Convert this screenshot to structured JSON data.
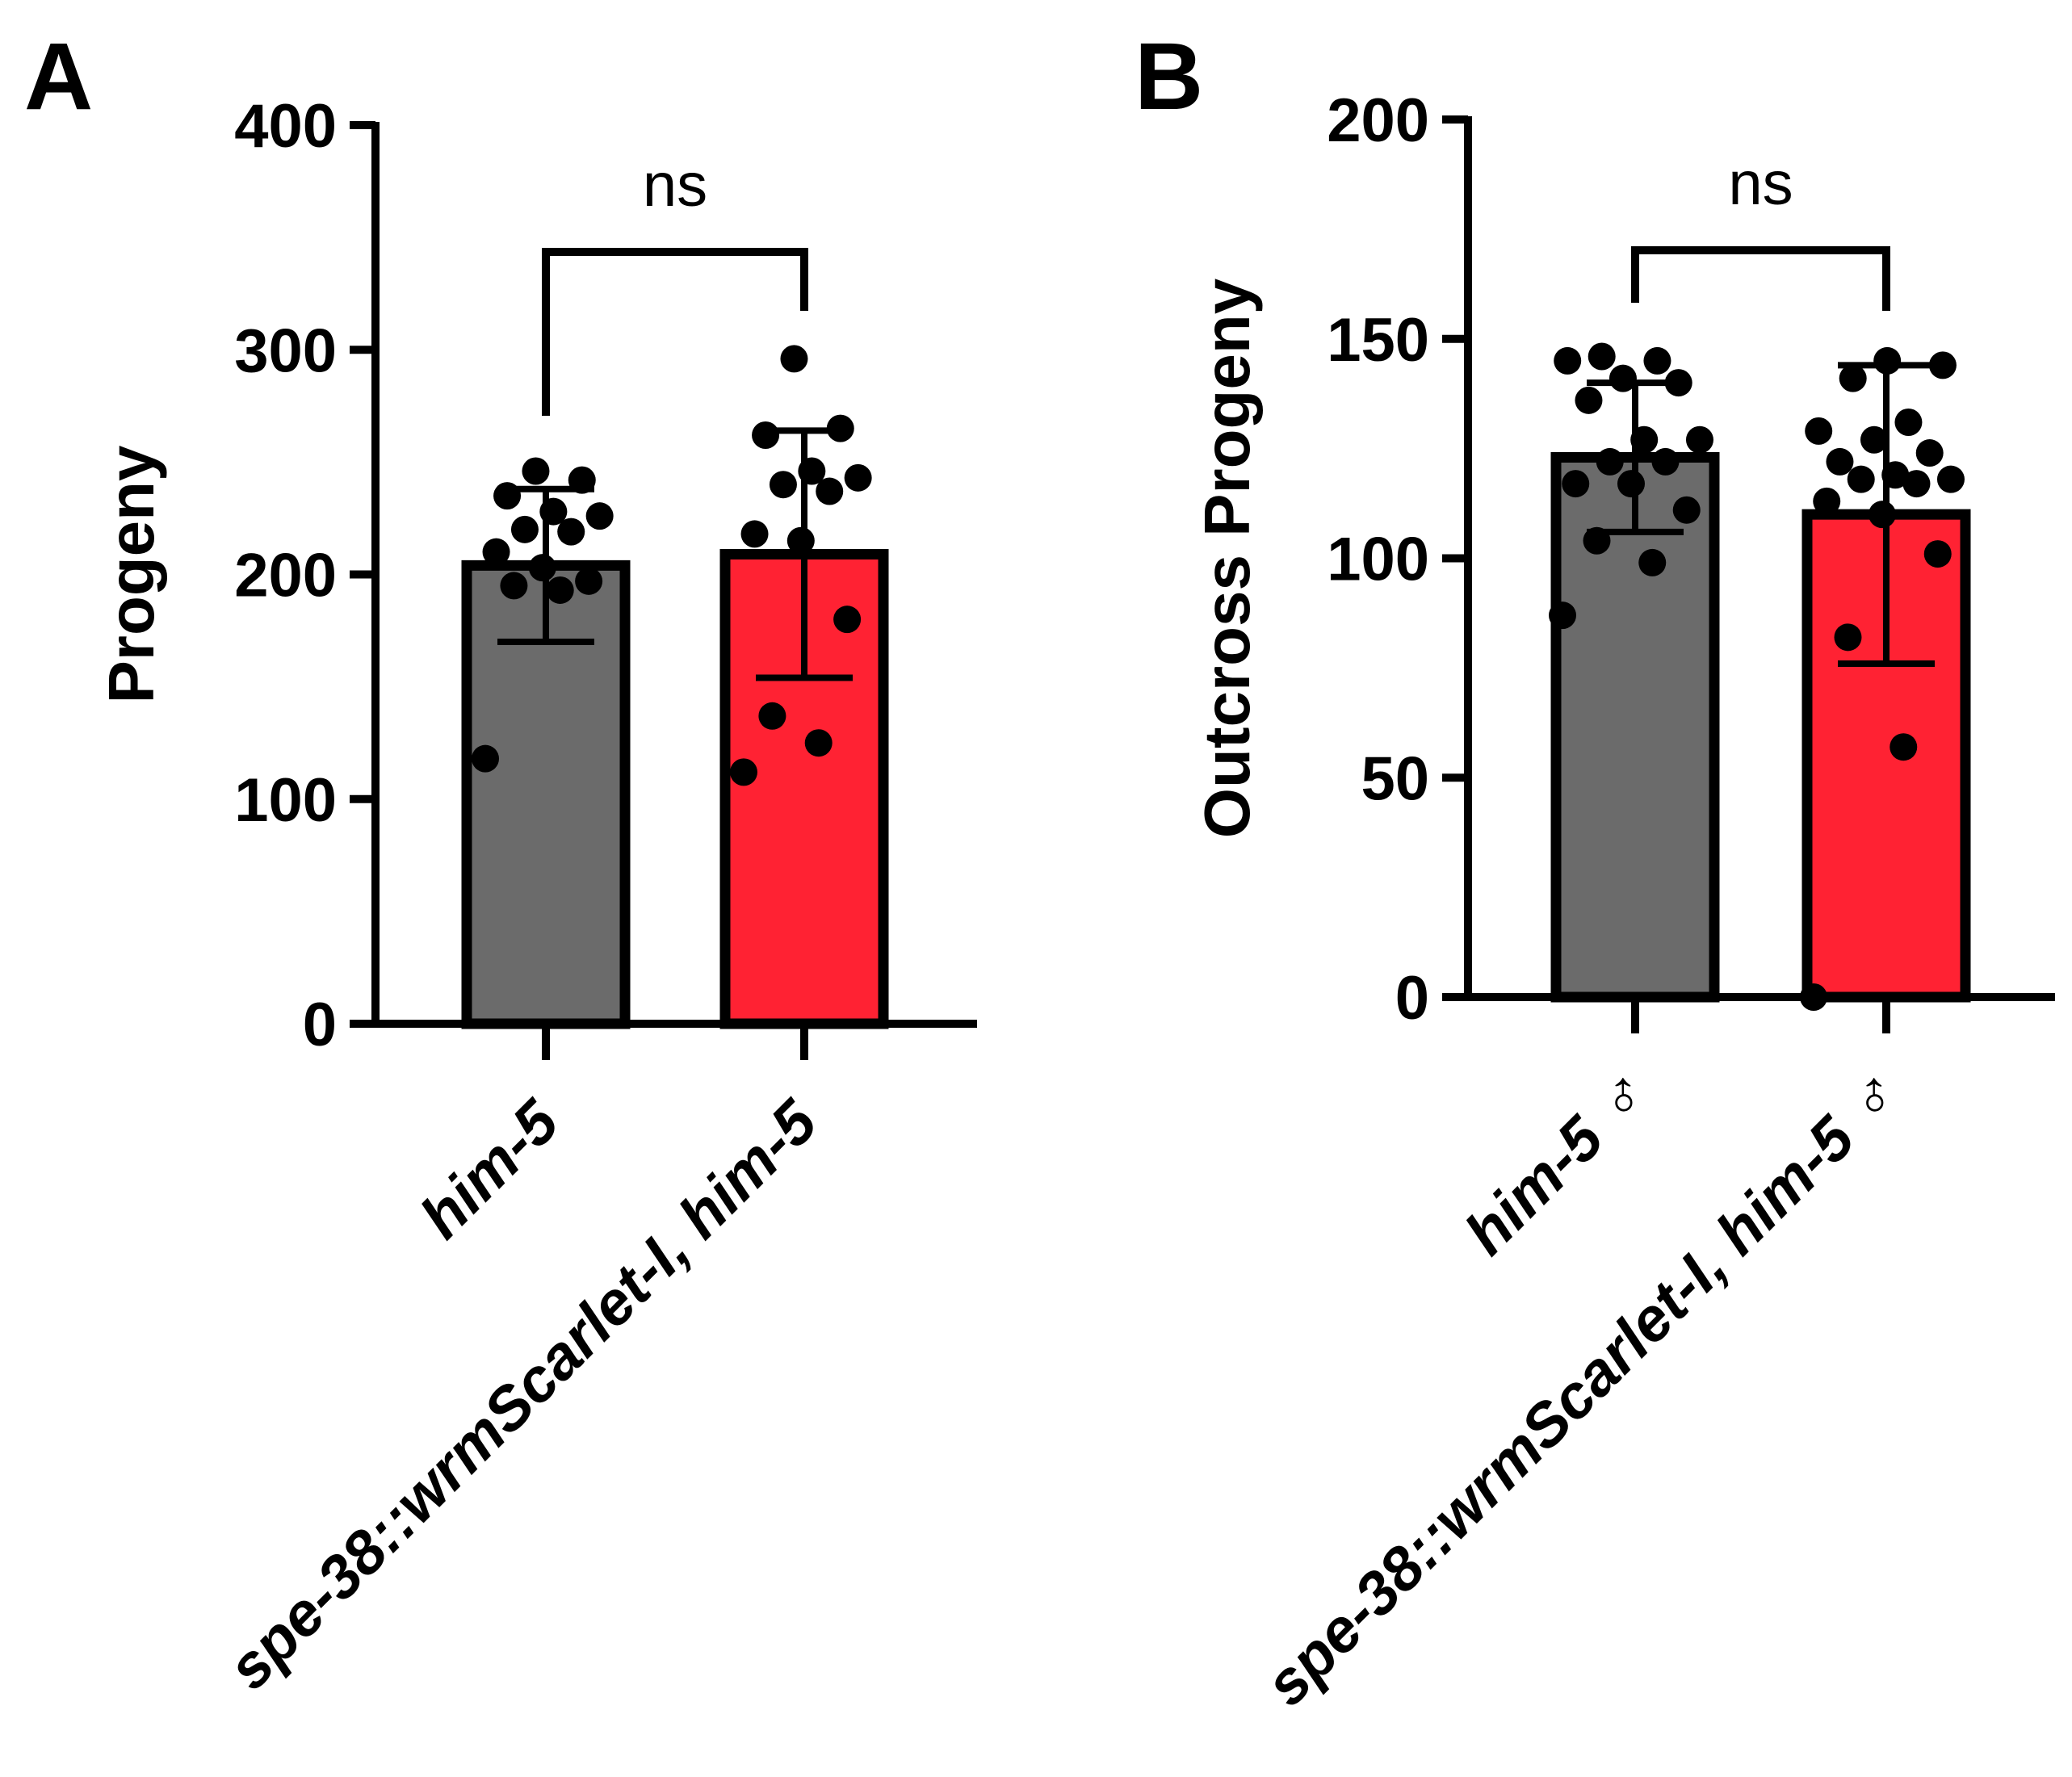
{
  "chart_data": [
    {
      "panel": "A",
      "type": "bar",
      "ylabel": "Progeny",
      "ylim": [
        0,
        400
      ],
      "yticks": [
        0,
        100,
        200,
        300,
        400
      ],
      "categories": [
        "him-5",
        "spe-38::wrmScarlet-I, him-5"
      ],
      "means": [
        204,
        209
      ],
      "sd": [
        34,
        55
      ],
      "colors": [
        "#6b6b6b",
        "#ff2233"
      ],
      "points": [
        [
          118,
          193,
          195,
          197,
          203,
          210,
          219,
          220,
          226,
          228,
          235,
          242,
          246
        ],
        [
          112,
          125,
          137,
          180,
          215,
          218,
          237,
          240,
          243,
          246,
          262,
          265,
          296
        ]
      ],
      "comparison": {
        "label": "ns",
        "between": [
          0,
          1
        ]
      }
    },
    {
      "panel": "B",
      "type": "bar",
      "ylabel": "Outcross Progeny",
      "ylim": [
        0,
        200
      ],
      "yticks": [
        0,
        50,
        100,
        150,
        200
      ],
      "categories": [
        "him-5 ♂",
        "spe-38::wrmScarlet-I, him-5 ♂"
      ],
      "means": [
        123,
        110
      ],
      "sd": [
        17,
        34
      ],
      "colors": [
        "#6b6b6b",
        "#ff2233"
      ],
      "points": [
        [
          87,
          99,
          104,
          111,
          117,
          117,
          122,
          122,
          127,
          127,
          136,
          140,
          141,
          145,
          145,
          146
        ],
        [
          0,
          57,
          82,
          101,
          110,
          113,
          117,
          118,
          118,
          119,
          122,
          124,
          127,
          129,
          131,
          141,
          144,
          145
        ]
      ],
      "comparison": {
        "label": "ns",
        "between": [
          0,
          1
        ]
      }
    }
  ]
}
